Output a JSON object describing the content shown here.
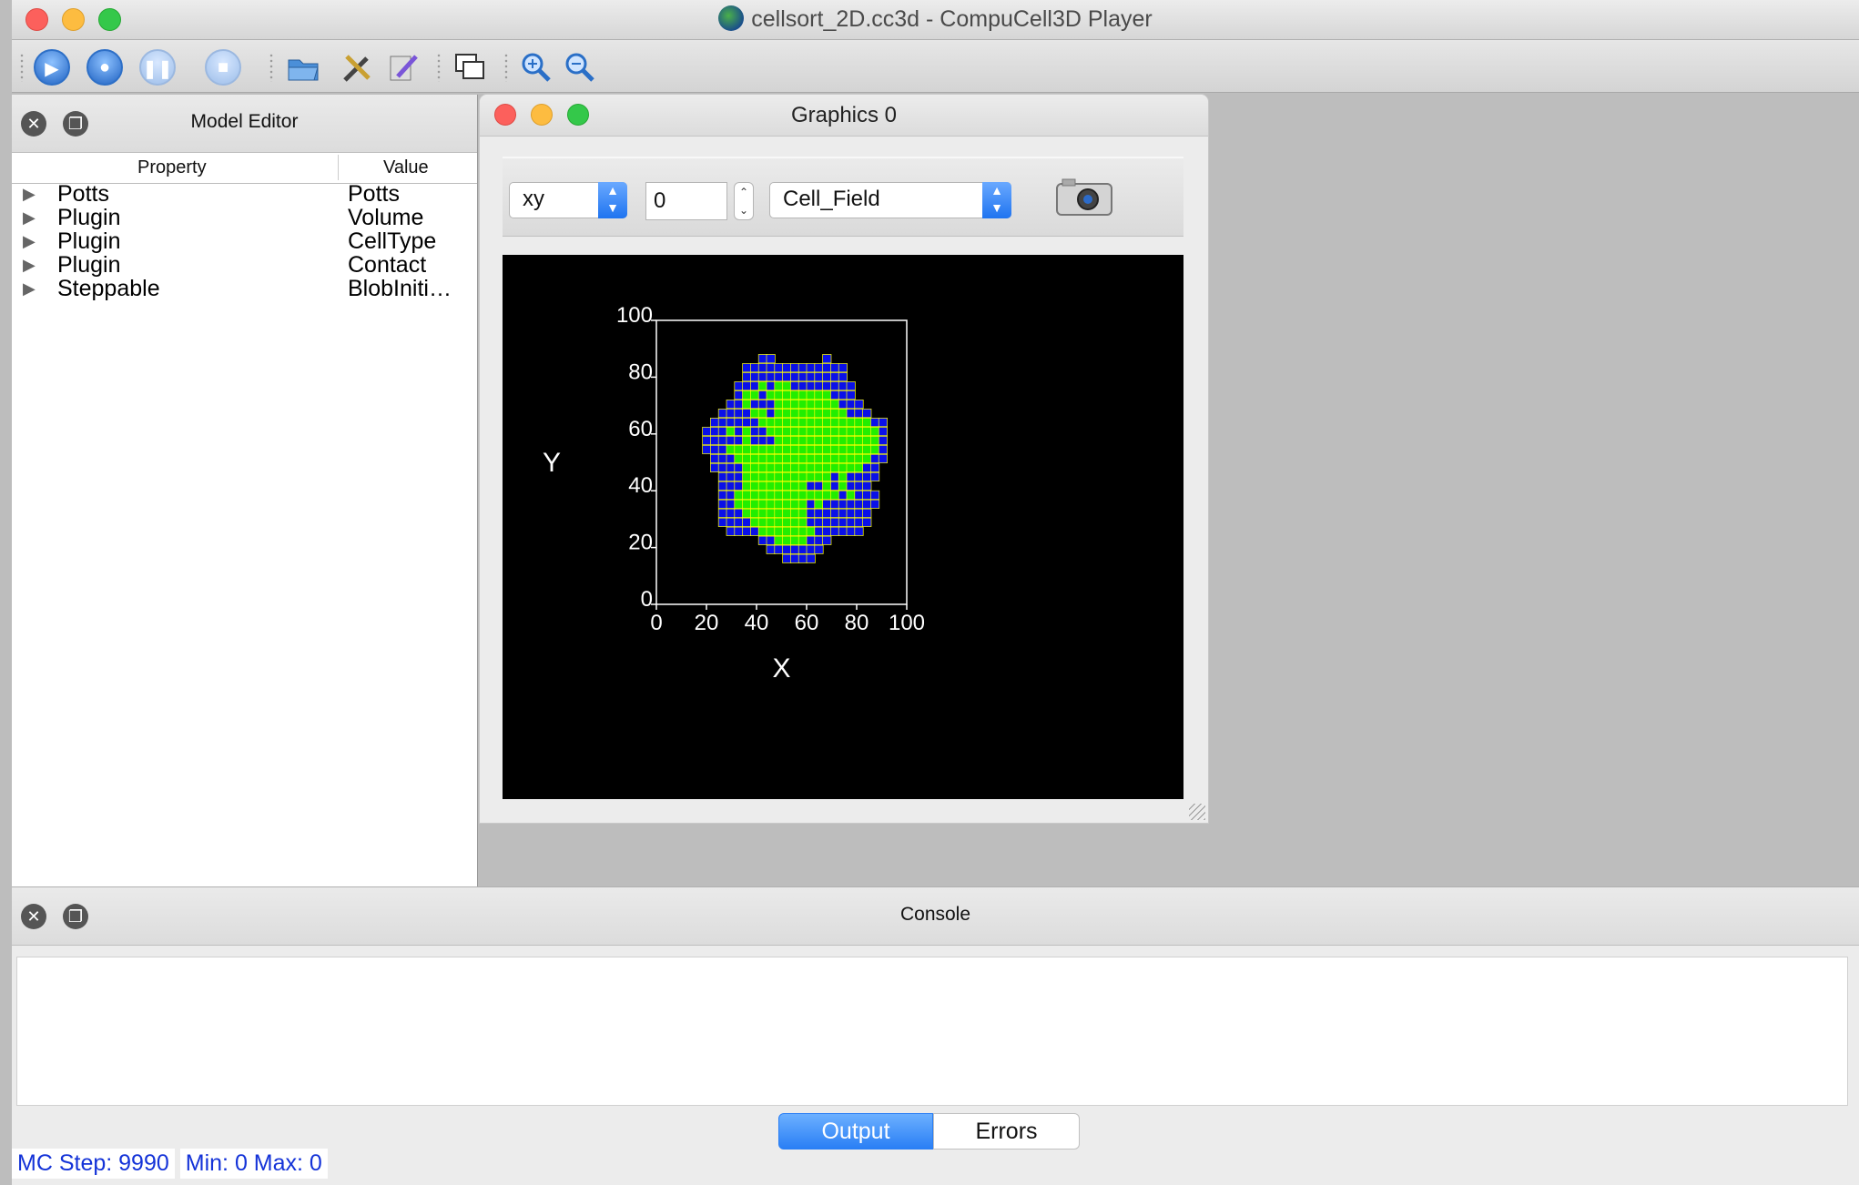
{
  "window": {
    "title": "cellsort_2D.cc3d - CompuCell3D Player"
  },
  "toolbar": {
    "buttons": [
      "run-icon",
      "step-icon",
      "pause-icon",
      "stop-icon",
      "open-icon",
      "tools-icon",
      "edit-icon",
      "new-window-icon",
      "zoom-in-icon",
      "zoom-out-icon"
    ]
  },
  "model_editor": {
    "title": "Model Editor",
    "col_property": "Property",
    "col_value": "Value",
    "rows": [
      {
        "property": "Potts",
        "value": "Potts"
      },
      {
        "property": "Plugin",
        "value": "Volume"
      },
      {
        "property": "Plugin",
        "value": "CellType"
      },
      {
        "property": "Plugin",
        "value": "Contact"
      },
      {
        "property": "Steppable",
        "value": "BlobIniti…"
      }
    ]
  },
  "graphics": {
    "title": "Graphics 0",
    "plane": "xy",
    "slice": "0",
    "field": "Cell_Field"
  },
  "chart_data": {
    "type": "heatmap",
    "title": "",
    "xlabel": "X",
    "ylabel": "Y",
    "xlim": [
      0,
      100
    ],
    "ylim": [
      0,
      100
    ],
    "xticks": [
      "0",
      "20",
      "40",
      "60",
      "80",
      "100"
    ],
    "yticks": [
      "0",
      "20",
      "40",
      "60",
      "80",
      "100"
    ],
    "background": "#000000",
    "colors": {
      "condensing": "#22ee00",
      "non_condensing": "#0a10e8",
      "border": "#ffff00",
      "axes": "#ffffff"
    },
    "blob_center": [
      54,
      50
    ],
    "blob_radius_approx": 38
  },
  "console": {
    "title": "Console",
    "tabs": [
      "Output",
      "Errors"
    ],
    "active_tab": "Output"
  },
  "status": {
    "mc_step": "MC Step: 9990",
    "minmax": "Min: 0 Max: 0"
  }
}
